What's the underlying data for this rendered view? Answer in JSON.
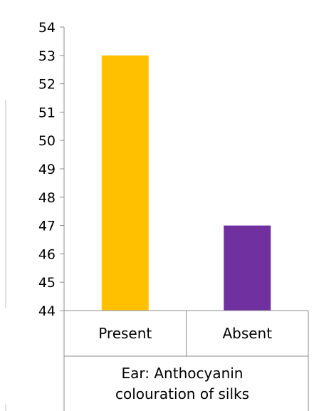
{
  "chart_data": {
    "type": "bar",
    "categories": [
      "Present",
      "Absent"
    ],
    "values": [
      53,
      47
    ],
    "colors": [
      "#FFC000",
      "#7030A0"
    ],
    "ylim": [
      44,
      54
    ],
    "yticks": [
      "44",
      "45",
      "46",
      "47",
      "48",
      "49",
      "50",
      "51",
      "52",
      "53",
      "54"
    ],
    "xlabel_lines": [
      "Ear: Anthocyanin",
      "colouration of silks"
    ],
    "ylabel": "",
    "title": "",
    "grid": false,
    "legend": "none"
  }
}
